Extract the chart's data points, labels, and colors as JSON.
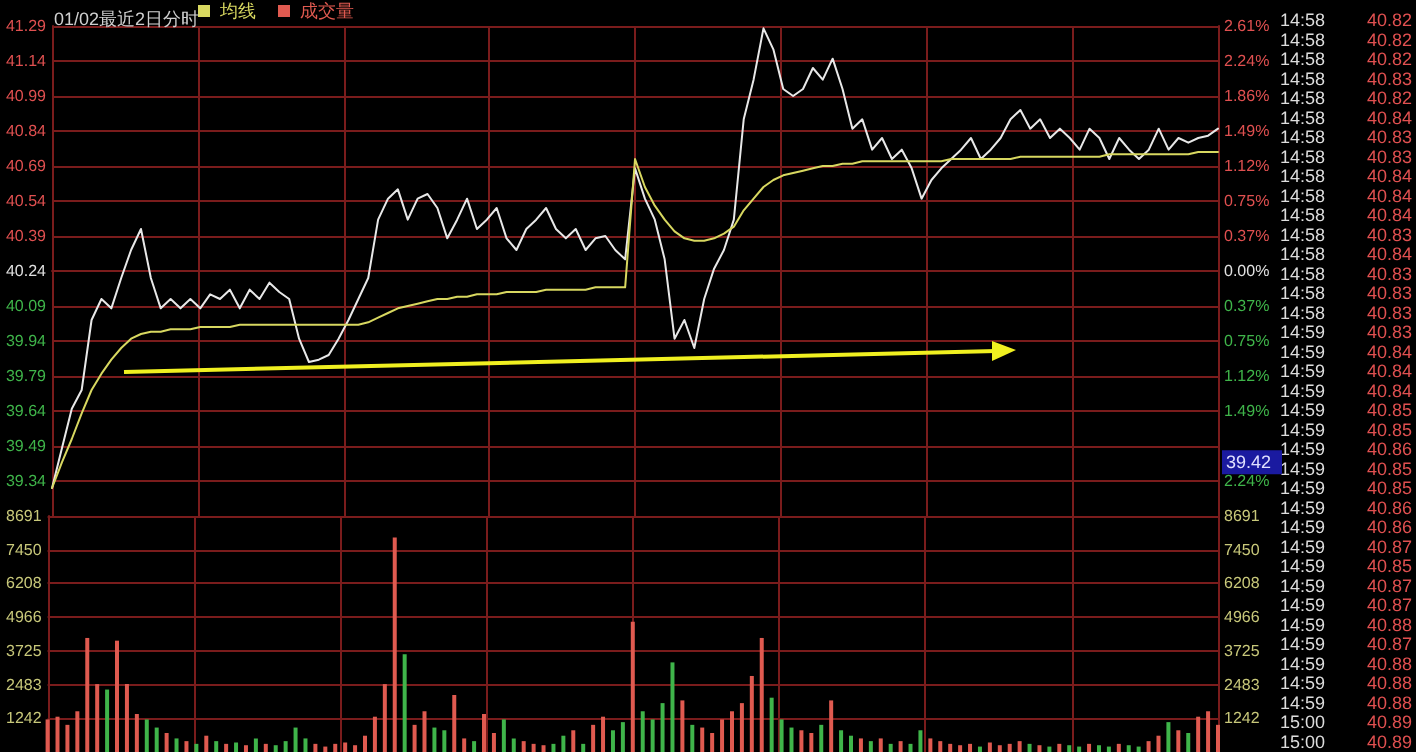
{
  "chart_data": [
    {
      "type": "line",
      "title": "01/02最近2日分时",
      "categories": [
        null,
        null,
        null,
        null,
        null,
        null,
        null,
        null,
        null,
        null,
        null,
        null,
        null,
        null,
        null,
        null,
        null,
        null,
        null,
        null,
        null,
        null,
        null,
        null,
        null,
        null,
        null,
        null,
        null,
        null,
        null,
        null,
        null,
        null,
        null,
        null,
        null,
        null,
        null,
        null,
        null,
        null,
        null,
        null,
        null,
        null,
        null,
        null,
        null,
        null,
        null,
        null,
        null,
        null,
        null,
        null,
        null,
        null,
        null,
        null,
        null,
        null,
        null,
        null,
        null,
        null,
        null,
        null,
        null,
        null,
        null,
        null,
        null,
        null,
        null,
        null,
        null,
        null,
        null,
        null,
        null,
        null,
        null,
        null,
        null,
        null,
        null,
        null,
        null,
        null,
        null,
        null,
        null,
        null,
        null,
        null,
        null,
        null,
        null,
        null,
        null,
        null,
        null,
        null,
        null,
        null,
        null,
        null,
        null,
        null,
        null,
        null,
        null,
        null,
        null,
        null,
        null,
        null,
        null
      ],
      "series": [
        {
          "color": "#e8e8e8",
          "values": [
            39.31,
            39.48,
            39.65,
            39.73,
            40.03,
            40.12,
            40.08,
            40.21,
            40.33,
            40.42,
            40.21,
            40.08,
            40.12,
            40.08,
            40.12,
            40.08,
            40.14,
            40.12,
            40.16,
            40.08,
            40.16,
            40.12,
            40.19,
            40.15,
            40.12,
            39.95,
            39.85,
            39.86,
            39.88,
            39.95,
            40.03,
            40.12,
            40.21,
            40.46,
            40.55,
            40.59,
            40.46,
            40.55,
            40.57,
            40.51,
            40.38,
            40.46,
            40.55,
            40.42,
            40.46,
            40.51,
            40.38,
            40.33,
            40.42,
            40.46,
            40.51,
            40.42,
            40.38,
            40.42,
            40.33,
            40.38,
            40.39,
            40.33,
            40.29,
            40.68,
            40.55,
            40.46,
            40.29,
            39.95,
            40.03,
            39.91,
            40.12,
            40.25,
            40.33,
            40.46,
            40.89,
            41.06,
            41.28,
            41.19,
            41.02,
            40.99,
            41.02,
            41.11,
            41.06,
            41.15,
            41.02,
            40.85,
            40.89,
            40.76,
            40.81,
            40.72,
            40.76,
            40.68,
            40.55,
            40.63,
            40.68,
            40.72,
            40.76,
            40.81,
            40.72,
            40.76,
            40.81,
            40.89,
            40.93,
            40.85,
            40.89,
            40.81,
            40.85,
            40.81,
            40.76,
            40.85,
            40.81,
            40.72,
            40.81,
            40.76,
            40.72,
            40.76,
            40.85,
            40.76,
            40.81,
            40.79,
            40.81,
            40.82,
            40.85
          ]
        },
        {
          "name": "均线",
          "color": "#d8d860",
          "values": [
            39.31,
            39.42,
            39.52,
            39.63,
            39.73,
            39.8,
            39.86,
            39.91,
            39.95,
            39.97,
            39.98,
            39.98,
            39.99,
            39.99,
            39.99,
            40.0,
            40.0,
            40.0,
            40.0,
            40.01,
            40.01,
            40.01,
            40.01,
            40.01,
            40.01,
            40.01,
            40.01,
            40.01,
            40.01,
            40.01,
            40.01,
            40.01,
            40.02,
            40.04,
            40.06,
            40.08,
            40.09,
            40.1,
            40.11,
            40.12,
            40.12,
            40.13,
            40.13,
            40.14,
            40.14,
            40.14,
            40.15,
            40.15,
            40.15,
            40.15,
            40.16,
            40.16,
            40.16,
            40.16,
            40.16,
            40.17,
            40.17,
            40.17,
            40.17,
            40.72,
            40.6,
            40.52,
            40.46,
            40.41,
            40.38,
            40.37,
            40.37,
            40.38,
            40.4,
            40.43,
            40.5,
            40.55,
            40.6,
            40.63,
            40.65,
            40.66,
            40.67,
            40.68,
            40.69,
            40.69,
            40.7,
            40.7,
            40.71,
            40.71,
            40.71,
            40.71,
            40.71,
            40.71,
            40.71,
            40.71,
            40.71,
            40.72,
            40.72,
            40.72,
            40.72,
            40.72,
            40.72,
            40.72,
            40.73,
            40.73,
            40.73,
            40.73,
            40.73,
            40.73,
            40.73,
            40.73,
            40.73,
            40.74,
            40.74,
            40.74,
            40.74,
            40.74,
            40.74,
            40.74,
            40.74,
            40.74,
            40.75,
            40.75,
            40.75
          ]
        }
      ],
      "ylim": [
        39.19,
        41.29
      ],
      "yticks": [
        41.29,
        41.14,
        40.99,
        40.84,
        40.69,
        40.54,
        40.39,
        40.24,
        40.09,
        39.94,
        39.79,
        39.64,
        39.49,
        39.34
      ],
      "y2lim": [
        -2.61,
        2.61
      ],
      "y2ticks": [
        {
          "value": 2.61,
          "label": "2.61%"
        },
        {
          "value": 2.24,
          "label": "2.24%"
        },
        {
          "value": 1.86,
          "label": "1.86%"
        },
        {
          "value": 1.49,
          "label": "1.49%"
        },
        {
          "value": 1.12,
          "label": "1.12%"
        },
        {
          "value": 0.75,
          "label": "0.75%"
        },
        {
          "value": 0.37,
          "label": "0.37%"
        },
        {
          "value": 0,
          "label": "0.00%"
        },
        {
          "value": -0.37,
          "label": "0.37%"
        },
        {
          "value": -0.75,
          "label": "0.75%"
        },
        {
          "value": -1.12,
          "label": "1.12%"
        },
        {
          "value": -1.49,
          "label": "1.49%"
        },
        {
          "value": -1.86,
          "label": null
        },
        {
          "value": -2.24,
          "label": "2.24%"
        }
      ],
      "grid": true,
      "legend": "top left",
      "tick_labels": "y",
      "marker": "none",
      "line_style": "solid",
      "annotations": [
        {
          "text": "39.42",
          "y": 39.42
        },
        "14:58",
        "40.82",
        "14:58",
        "40.82",
        "14:58",
        "40.82",
        "14:58",
        "40.83",
        "14:58",
        "40.82",
        "14:58",
        "40.84",
        "14:58",
        "40.83",
        "14:58",
        "40.83",
        "14:58",
        "40.84",
        "14:58",
        "40.84",
        "14:58",
        "40.84",
        "14:58",
        "40.83",
        "14:58",
        "40.84",
        "14:58",
        "40.83",
        "14:58",
        "40.83",
        "14:58",
        "40.83",
        "14:59",
        "40.83",
        "14:59",
        "40.84",
        "14:59",
        "40.84",
        "14:59",
        "40.84",
        "14:59",
        "40.85",
        "14:59",
        "40.85",
        "14:59",
        "40.86",
        "14:59",
        "40.85",
        "14:59",
        "40.85",
        "14:59",
        "40.86",
        "14:59",
        "40.86",
        "14:59",
        "40.87",
        "14:59",
        "40.85",
        "14:59",
        "40.87",
        "14:59",
        "40.87",
        "14:59",
        "40.88",
        "14:59",
        "40.87",
        "14:59",
        "40.88",
        "14:59",
        "40.88",
        "14:59",
        "40.88",
        "15:00",
        "40.89",
        "15:00",
        "40.89"
      ]
    },
    {
      "type": "bar",
      "categories": [
        null,
        null,
        null,
        null,
        null,
        null,
        null,
        null,
        null,
        null,
        null,
        null,
        null,
        null,
        null,
        null,
        null,
        null,
        null,
        null,
        null,
        null,
        null,
        null,
        null,
        null,
        null,
        null,
        null,
        null,
        null,
        null,
        null,
        null,
        null,
        null,
        null,
        null,
        null,
        null,
        null,
        null,
        null,
        null,
        null,
        null,
        null,
        null,
        null,
        null,
        null,
        null,
        null,
        null,
        null,
        null,
        null,
        null,
        null,
        null,
        null,
        null,
        null,
        null,
        null,
        null,
        null,
        null,
        null,
        null,
        null,
        null,
        null,
        null,
        null,
        null,
        null,
        null,
        null,
        null,
        null,
        null,
        null,
        null,
        null,
        null,
        null,
        null,
        null,
        null,
        null,
        null,
        null,
        null,
        null,
        null,
        null,
        null,
        null,
        null,
        null,
        null,
        null,
        null,
        null,
        null,
        null,
        null,
        null,
        null,
        null,
        null,
        null,
        null,
        null,
        null,
        null,
        null,
        null
      ],
      "series": [
        {
          "name": "成交量",
          "values": [
            1200,
            1300,
            1000,
            1500,
            4200,
            2500,
            2300,
            4100,
            2500,
            1400,
            1200,
            900,
            700,
            500,
            400,
            300,
            600,
            400,
            300,
            350,
            250,
            500,
            300,
            250,
            400,
            900,
            500,
            300,
            200,
            300,
            350,
            250,
            600,
            1300,
            2500,
            7900,
            3600,
            1000,
            1500,
            900,
            800,
            2100,
            500,
            400,
            1400,
            700,
            1200,
            500,
            400,
            300,
            250,
            300,
            600,
            800,
            300,
            1000,
            1300,
            800,
            1100,
            4800,
            1500,
            1200,
            1800,
            3300,
            1900,
            1000,
            900,
            700,
            1200,
            1500,
            1800,
            2800,
            4200,
            2000,
            1200,
            900,
            800,
            700,
            1000,
            1900,
            800,
            600,
            500,
            400,
            500,
            300,
            400,
            300,
            800,
            500,
            400,
            300,
            250,
            300,
            200,
            350,
            250,
            300,
            400,
            300,
            250,
            200,
            300,
            250,
            200,
            300,
            250,
            200,
            300,
            250,
            200,
            400,
            600,
            1100,
            800,
            700,
            1300,
            1500,
            1000
          ],
          "colors": [
            "#e05a50",
            "#e05a50",
            "#e05a50",
            "#e05a50",
            "#e05a50",
            "#e05a50",
            "#3fb54a",
            "#e05a50",
            "#e05a50",
            "#e05a50",
            "#3fb54a",
            "#3fb54a",
            "#e05a50",
            "#3fb54a",
            "#e05a50",
            "#3fb54a",
            "#e05a50",
            "#3fb54a",
            "#e05a50",
            "#3fb54a",
            "#e05a50",
            "#3fb54a",
            "#e05a50",
            "#3fb54a",
            "#3fb54a",
            "#3fb54a",
            "#3fb54a",
            "#e05a50",
            "#e05a50",
            "#e05a50",
            "#e05a50",
            "#e05a50",
            "#e05a50",
            "#e05a50",
            "#e05a50",
            "#e05a50",
            "#3fb54a",
            "#e05a50",
            "#e05a50",
            "#3fb54a",
            "#3fb54a",
            "#e05a50",
            "#e05a50",
            "#3fb54a",
            "#e05a50",
            "#e05a50",
            "#3fb54a",
            "#3fb54a",
            "#e05a50",
            "#e05a50",
            "#e05a50",
            "#3fb54a",
            "#3fb54a",
            "#e05a50",
            "#3fb54a",
            "#e05a50",
            "#e05a50",
            "#3fb54a",
            "#3fb54a",
            "#e05a50",
            "#3fb54a",
            "#3fb54a",
            "#3fb54a",
            "#3fb54a",
            "#e05a50",
            "#3fb54a",
            "#e05a50",
            "#e05a50",
            "#e05a50",
            "#e05a50",
            "#e05a50",
            "#e05a50",
            "#e05a50",
            "#3fb54a",
            "#3fb54a",
            "#3fb54a",
            "#e05a50",
            "#e05a50",
            "#3fb54a",
            "#e05a50",
            "#3fb54a",
            "#3fb54a",
            "#e05a50",
            "#3fb54a",
            "#e05a50",
            "#3fb54a",
            "#e05a50",
            "#3fb54a",
            "#3fb54a",
            "#e05a50",
            "#e05a50",
            "#e05a50",
            "#e05a50",
            "#e05a50",
            "#3fb54a",
            "#e05a50",
            "#e05a50",
            "#e05a50",
            "#e05a50",
            "#3fb54a",
            "#e05a50",
            "#3fb54a",
            "#e05a50",
            "#3fb54a",
            "#3fb54a",
            "#e05a50",
            "#3fb54a",
            "#3fb54a",
            "#e05a50",
            "#3fb54a",
            "#3fb54a",
            "#e05a50",
            "#e05a50",
            "#3fb54a",
            "#e05a50",
            "#3fb54a",
            "#e05a50",
            "#e05a50",
            "#e05a50"
          ]
        }
      ],
      "ylim": [
        0,
        8691
      ],
      "yticks": [
        1242,
        2483,
        3725,
        4966,
        6208,
        7450,
        8691
      ],
      "y2lim": [
        0,
        8691
      ],
      "y2ticks": [
        1242,
        2483,
        3725,
        4966,
        6208,
        7450,
        8691
      ],
      "grid": true,
      "legend": "top left",
      "tick_labels": "y"
    }
  ]
}
